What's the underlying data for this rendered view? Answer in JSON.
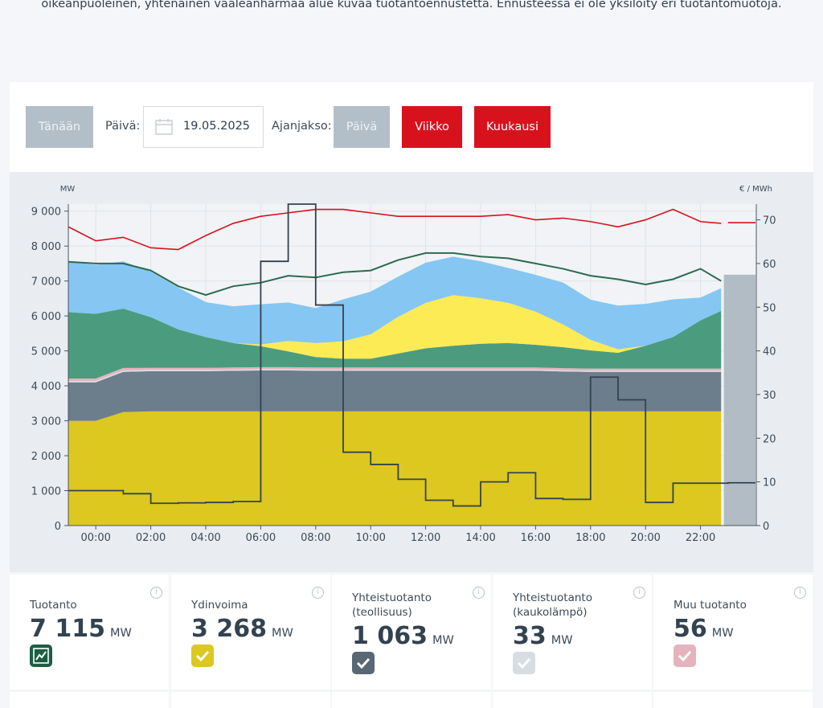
{
  "intro_text": "oikeanpuoleinen, yhtenäinen vaaleanharmaa alue kuvaa tuotantoennustetta. Ennusteessa ei ole yksilöity eri tuotantomuotoja.",
  "controls": {
    "today": "Tänään",
    "date_label": "Päivä:",
    "date_value": "19.05.2025",
    "period_label": "Ajanjakso:",
    "period_day": "Päivä",
    "period_week": "Viikko",
    "period_month": "Kuukausi"
  },
  "colors": {
    "nuclear": "#dcc81e",
    "chp_industry": "#6c7d8c",
    "chp_district": "#d8dde2",
    "other": "#e5b3bd",
    "hydro": "#4b9c7f",
    "solar": "#fdeb55",
    "wind": "#85c6f3",
    "consumption": "#2c6b4d",
    "price": "#33424f",
    "forecast": "#b1bcc5",
    "temp_line": "#d8121d"
  },
  "chart_data": {
    "type": "area",
    "ylabel": "MW",
    "y2label": "€ / MWh",
    "ylim": [
      0,
      9200
    ],
    "y2lim": [
      0,
      73.6
    ],
    "yticks": [
      "0",
      "1 000",
      "2 000",
      "3 000",
      "4 000",
      "5 000",
      "6 000",
      "7 000",
      "8 000",
      "9 000"
    ],
    "y2ticks": [
      "0",
      "10",
      "20",
      "30",
      "40",
      "50",
      "60",
      "70"
    ],
    "xticks": [
      "00:00",
      "02:00",
      "04:00",
      "06:00",
      "08:00",
      "10:00",
      "12:00",
      "14:00",
      "16:00",
      "18:00",
      "20:00",
      "22:00"
    ],
    "hours": [
      -1,
      0,
      1,
      2,
      3,
      4,
      5,
      6,
      7,
      8,
      9,
      10,
      11,
      12,
      13,
      14,
      15,
      16,
      17,
      18,
      19,
      20,
      21,
      22,
      22.75
    ],
    "stacked_series": [
      {
        "key": "nuclear",
        "values": [
          3000,
          3000,
          3250,
          3270,
          3270,
          3270,
          3270,
          3270,
          3270,
          3270,
          3270,
          3270,
          3270,
          3270,
          3270,
          3270,
          3270,
          3270,
          3270,
          3270,
          3270,
          3270,
          3270,
          3270,
          3270
        ]
      },
      {
        "key": "chp_industry",
        "values": [
          1100,
          1100,
          1150,
          1150,
          1150,
          1150,
          1160,
          1170,
          1170,
          1160,
          1160,
          1160,
          1160,
          1160,
          1160,
          1160,
          1160,
          1160,
          1140,
          1130,
          1130,
          1130,
          1130,
          1130,
          1130
        ]
      },
      {
        "key": "chp_district",
        "values": [
          40,
          40,
          40,
          35,
          35,
          35,
          35,
          35,
          35,
          35,
          35,
          35,
          35,
          35,
          35,
          35,
          35,
          35,
          35,
          35,
          35,
          35,
          35,
          35,
          35
        ]
      },
      {
        "key": "other",
        "values": [
          70,
          70,
          70,
          60,
          60,
          60,
          60,
          60,
          60,
          60,
          60,
          60,
          60,
          60,
          60,
          60,
          60,
          60,
          60,
          60,
          60,
          60,
          60,
          60,
          60
        ]
      },
      {
        "key": "hydro",
        "values": [
          1900,
          1850,
          1700,
          1450,
          1100,
          880,
          700,
          600,
          450,
          300,
          250,
          250,
          400,
          550,
          620,
          680,
          700,
          650,
          600,
          520,
          450,
          650,
          900,
          1380,
          1650
        ]
      },
      {
        "key": "solar",
        "values": [
          0,
          0,
          0,
          0,
          0,
          0,
          0,
          50,
          300,
          400,
          500,
          700,
          1050,
          1300,
          1450,
          1300,
          1150,
          950,
          650,
          300,
          100,
          0,
          0,
          0,
          0
        ]
      },
      {
        "key": "wind",
        "values": [
          1450,
          1400,
          1350,
          1300,
          1200,
          1000,
          1050,
          1150,
          1100,
          1000,
          1200,
          1220,
          1150,
          1150,
          1100,
          1060,
          1000,
          1050,
          1200,
          1150,
          1250,
          1200,
          1080,
          650,
          650
        ]
      }
    ],
    "consumption": [
      7550,
      7500,
      7500,
      7300,
      6850,
      6600,
      6850,
      6950,
      7150,
      7100,
      7250,
      7300,
      7600,
      7800,
      7800,
      7700,
      7650,
      7500,
      7350,
      7150,
      7050,
      6900,
      7050,
      7350,
      7000
    ],
    "price_segments": [
      [
        0,
        1,
        8
      ],
      [
        1,
        2,
        7.3
      ],
      [
        2,
        3,
        5.1
      ],
      [
        3,
        4,
        5.2
      ],
      [
        4,
        5,
        5.3
      ],
      [
        5,
        6,
        5.5
      ],
      [
        6,
        7,
        60.5
      ],
      [
        7,
        8,
        73.6
      ],
      [
        8,
        9,
        50.5
      ],
      [
        9,
        10,
        16.8
      ],
      [
        10,
        11,
        14
      ],
      [
        11,
        12,
        10.6
      ],
      [
        12,
        13,
        5.8
      ],
      [
        13,
        14,
        4.5
      ],
      [
        14,
        15,
        10
      ],
      [
        15,
        16,
        12.1
      ],
      [
        16,
        17,
        6.2
      ],
      [
        17,
        18,
        6.0
      ],
      [
        18,
        19,
        34
      ],
      [
        19,
        20,
        28.8
      ],
      [
        20,
        21,
        5.3
      ],
      [
        21,
        22,
        9.7
      ],
      [
        22,
        23,
        9.7
      ],
      [
        23,
        24,
        9.8
      ]
    ],
    "temp_line": [
      8550,
      8150,
      8250,
      7950,
      7900,
      8300,
      8650,
      8850,
      8950,
      9050,
      9050,
      8950,
      8850,
      8850,
      8850,
      8850,
      8900,
      8750,
      8800,
      8700,
      8550,
      8750,
      9050,
      8700,
      8650
    ],
    "temp_line_forecast": 8670,
    "forecast_total": 7180
  },
  "cards": [
    {
      "title": "Tuotanto",
      "value": "7 115",
      "unit": "MW"
    },
    {
      "title": "Ydinvoima",
      "value": "3 268",
      "unit": "MW"
    },
    {
      "title": "Yhteistuotanto (teollisuus)",
      "value": "1 063",
      "unit": "MW"
    },
    {
      "title": "Yhteistuotanto (kaukolämpö)",
      "value": "33",
      "unit": "MW"
    },
    {
      "title": "Muu tuotanto",
      "value": "56",
      "unit": "MW"
    }
  ],
  "card_icons": [
    "chart-icon",
    "check-icon",
    "check-icon",
    "check-icon",
    "check-icon"
  ],
  "card_icon_colors": [
    "#1c5e44",
    "#dcc81e",
    "#5a6875",
    "#d8dde2",
    "#e5b3bd"
  ],
  "info_glyph": "i"
}
